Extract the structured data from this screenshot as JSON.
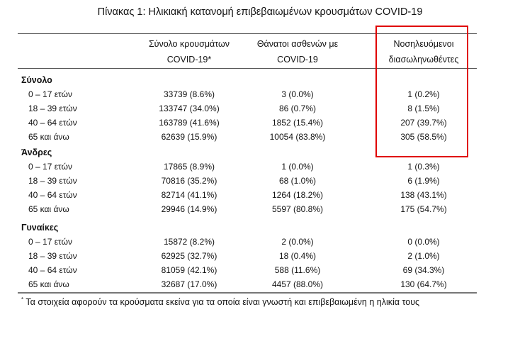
{
  "title": "Πίνακας 1: Ηλικιακή κατανομή επιβεβαιωμένων κρουσμάτων COVID-19",
  "columns": [
    {
      "line1": "Σύνολο κρουσμάτων",
      "line2": "COVID-19*"
    },
    {
      "line1": "Θάνατοι ασθενών με",
      "line2": "COVID-19"
    },
    {
      "line1": "Νοσηλευόμενοι",
      "line2": "διασωληνωθέντες"
    }
  ],
  "highlight_color": "#e00000",
  "groups": [
    {
      "name": "Σύνολο",
      "rows": [
        {
          "label": "0 – 17 ετών",
          "values": [
            "33739 (8.6%)",
            "3 (0.0%)",
            "1 (0.2%)"
          ]
        },
        {
          "label": "18 – 39 ετών",
          "values": [
            "133747 (34.0%)",
            "86 (0.7%)",
            "8 (1.5%)"
          ]
        },
        {
          "label": "40 – 64 ετών",
          "values": [
            "163789 (41.6%)",
            "1852 (15.4%)",
            "207 (39.7%)"
          ]
        },
        {
          "label": "65 και άνω",
          "values": [
            "62639 (15.9%)",
            "10054 (83.8%)",
            "305 (58.5%)"
          ]
        }
      ]
    },
    {
      "name": "Άνδρες",
      "rows": [
        {
          "label": "0 – 17 ετών",
          "values": [
            "17865 (8.9%)",
            "1 (0.0%)",
            "1 (0.3%)"
          ]
        },
        {
          "label": "18 – 39 ετών",
          "values": [
            "70816 (35.2%)",
            "68 (1.0%)",
            "6 (1.9%)"
          ]
        },
        {
          "label": "40 – 64 ετών",
          "values": [
            "82714 (41.1%)",
            "1264 (18.2%)",
            "138 (43.1%)"
          ]
        },
        {
          "label": "65 και άνω",
          "values": [
            "29946 (14.9%)",
            "5597 (80.8%)",
            "175 (54.7%)"
          ]
        }
      ]
    },
    {
      "name": "Γυναίκες",
      "rows": [
        {
          "label": "0 – 17 ετών",
          "values": [
            "15872 (8.2%)",
            "2 (0.0%)",
            "0 (0.0%)"
          ]
        },
        {
          "label": "18 – 39 ετών",
          "values": [
            "62925 (32.7%)",
            "18 (0.4%)",
            "2 (1.0%)"
          ]
        },
        {
          "label": "40 – 64 ετών",
          "values": [
            "81059 (42.1%)",
            "588 (11.6%)",
            "69 (34.3%)"
          ]
        },
        {
          "label": "65 και άνω",
          "values": [
            "32687 (17.0%)",
            "4457 (88.0%)",
            "130 (64.7%)"
          ]
        }
      ]
    }
  ],
  "footnote": {
    "mark": "*",
    "text": "Τα στοιχεία αφορούν τα κρούσματα εκείνα για τα οποία είναι γνωστή και επιβεβαιωμένη η ηλικία τους"
  }
}
